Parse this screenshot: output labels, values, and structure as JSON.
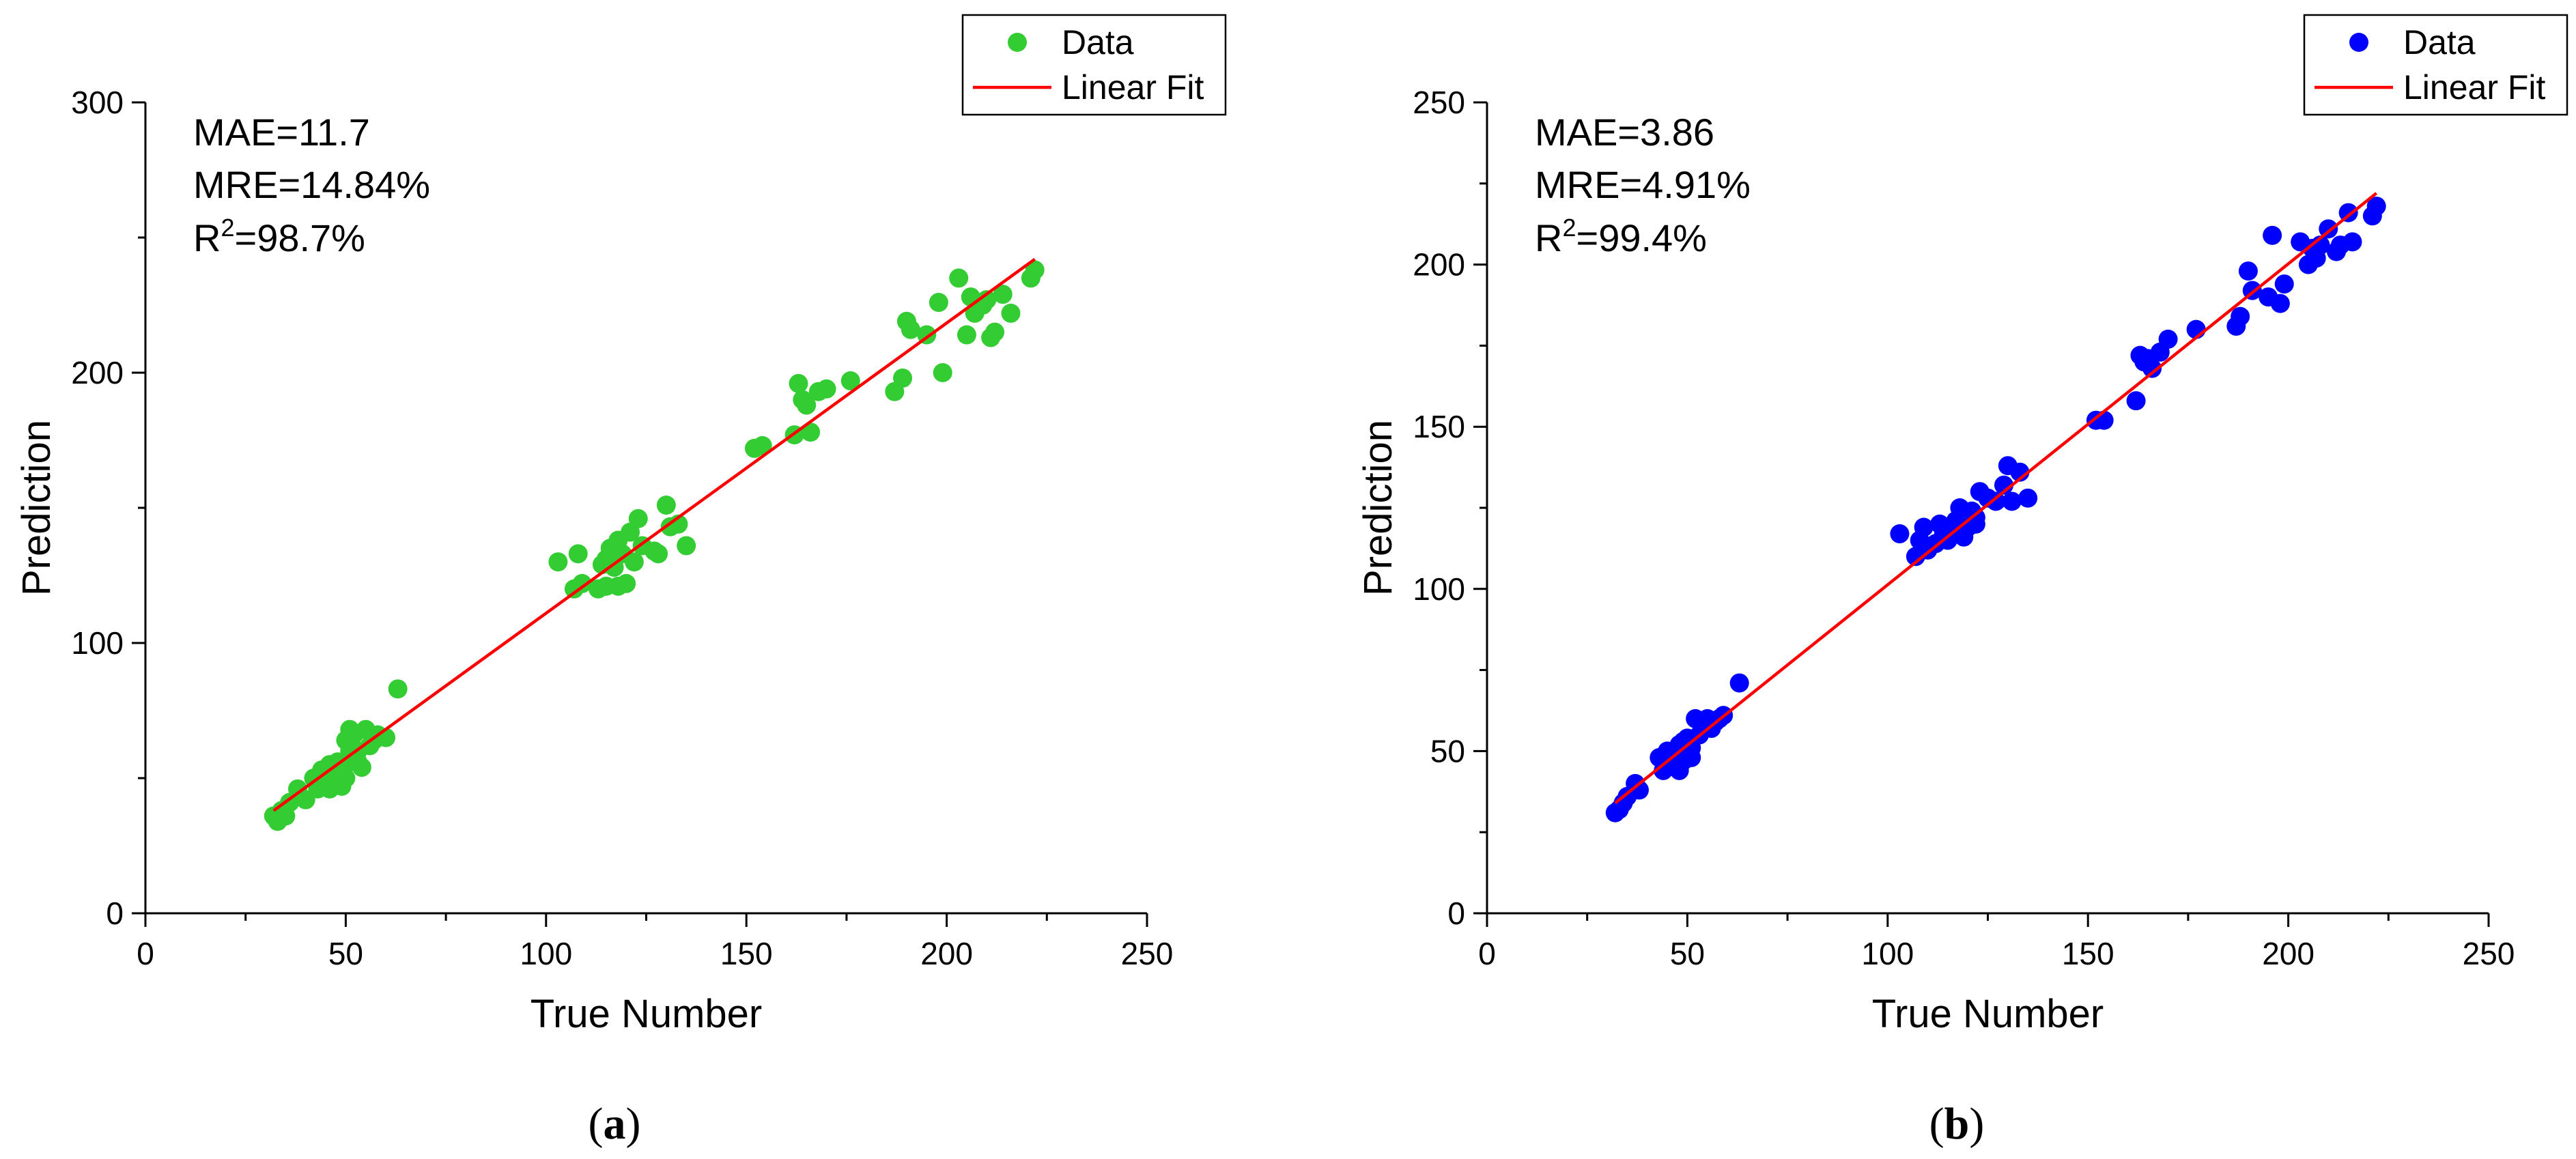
{
  "chart_data": [
    {
      "id": "a",
      "type": "scatter",
      "panel_label": "(a)",
      "xlabel": "True Number",
      "ylabel": "Prediction",
      "xlim": [
        0,
        250
      ],
      "ylim": [
        0,
        300
      ],
      "xticks": [
        0,
        50,
        100,
        150,
        200,
        250
      ],
      "yticks": [
        0,
        100,
        200,
        300
      ],
      "grid": false,
      "legend_position": "top-right",
      "stats": {
        "mae": "MAE=11.7",
        "mre": "MRE=14.84%",
        "r2_prefix": "R",
        "r2_sup": "2",
        "r2_value": "=98.7%"
      },
      "point_color": "#33CC33",
      "fit_color": "#FF0000",
      "series": [
        {
          "name": "Data",
          "kind": "points",
          "x": [
            32,
            33,
            34,
            35,
            36,
            38,
            40,
            42,
            43,
            44,
            45,
            45,
            46,
            46,
            47,
            47,
            48,
            48,
            49,
            49,
            50,
            50,
            50,
            51,
            51,
            52,
            52,
            53,
            53,
            54,
            55,
            56,
            57,
            58,
            60,
            63,
            103,
            107,
            108,
            109,
            113,
            114,
            115,
            115,
            116,
            117,
            118,
            118,
            119,
            120,
            121,
            122,
            123,
            124,
            127,
            128,
            130,
            131,
            133,
            135,
            152,
            154,
            162,
            163,
            164,
            165,
            166,
            168,
            170,
            176,
            187,
            189,
            190,
            191,
            195,
            198,
            199,
            203,
            205,
            206,
            207,
            209,
            210,
            211,
            212,
            214,
            216,
            221,
            222
          ],
          "y": [
            36,
            34,
            38,
            36,
            41,
            46,
            42,
            50,
            46,
            53,
            48,
            51,
            55,
            46,
            52,
            48,
            56,
            50,
            47,
            53,
            64,
            55,
            50,
            68,
            60,
            58,
            66,
            56,
            60,
            54,
            68,
            62,
            64,
            66,
            65,
            83,
            130,
            120,
            133,
            122,
            120,
            129,
            121,
            131,
            135,
            128,
            138,
            121,
            133,
            122,
            141,
            130,
            146,
            136,
            134,
            133,
            151,
            143,
            144,
            136,
            172,
            173,
            177,
            196,
            190,
            188,
            178,
            193,
            194,
            197,
            193,
            198,
            219,
            216,
            214,
            226,
            200,
            235,
            214,
            228,
            222,
            225,
            227,
            213,
            215,
            229,
            222,
            235,
            238
          ]
        },
        {
          "name": "Linear Fit",
          "kind": "line",
          "x": [
            32,
            222
          ],
          "y": [
            38,
            242
          ]
        }
      ]
    },
    {
      "id": "b",
      "type": "scatter",
      "panel_label": "(b)",
      "xlabel": "True Number",
      "ylabel": "Prediction",
      "xlim": [
        0,
        250
      ],
      "ylim": [
        0,
        250
      ],
      "xticks": [
        0,
        50,
        100,
        150,
        200,
        250
      ],
      "yticks": [
        0,
        50,
        100,
        150,
        200,
        250
      ],
      "grid": false,
      "legend_position": "top-right",
      "stats": {
        "mae": "MAE=3.86",
        "mre": "MRE=4.91%",
        "r2_prefix": "R",
        "r2_sup": "2",
        "r2_value": "=99.4%"
      },
      "point_color": "#0000FF",
      "fit_color": "#FF0000",
      "series": [
        {
          "name": "Data",
          "kind": "points",
          "x": [
            32,
            33,
            34,
            35,
            37,
            38,
            43,
            44,
            45,
            45,
            46,
            47,
            47,
            48,
            48,
            49,
            49,
            50,
            50,
            51,
            51,
            52,
            53,
            54,
            55,
            56,
            57,
            58,
            59,
            63,
            103,
            107,
            108,
            109,
            110,
            112,
            113,
            114,
            115,
            116,
            117,
            118,
            119,
            120,
            121,
            122,
            122,
            123,
            125,
            127,
            129,
            130,
            131,
            133,
            135,
            152,
            154,
            162,
            163,
            164,
            165,
            166,
            168,
            170,
            177,
            187,
            188,
            190,
            191,
            195,
            196,
            198,
            199,
            203,
            205,
            206,
            207,
            208,
            210,
            212,
            213,
            215,
            216,
            221,
            222
          ],
          "y": [
            31,
            32,
            34,
            36,
            40,
            38,
            48,
            44,
            50,
            45,
            46,
            48,
            50,
            52,
            44,
            53,
            47,
            49,
            54,
            48,
            51,
            60,
            55,
            58,
            60,
            57,
            59,
            60,
            61,
            71,
            117,
            110,
            115,
            119,
            112,
            114,
            120,
            117,
            115,
            118,
            121,
            125,
            116,
            119,
            124,
            122,
            120,
            130,
            128,
            127,
            132,
            138,
            127,
            136,
            128,
            152,
            152,
            158,
            172,
            170,
            171,
            168,
            173,
            177,
            180,
            181,
            184,
            198,
            192,
            190,
            209,
            188,
            194,
            207,
            200,
            205,
            202,
            206,
            211,
            204,
            206,
            216,
            207,
            215,
            218
          ]
        },
        {
          "name": "Linear Fit",
          "kind": "line",
          "x": [
            32,
            222
          ],
          "y": [
            34,
            222
          ]
        }
      ]
    }
  ]
}
